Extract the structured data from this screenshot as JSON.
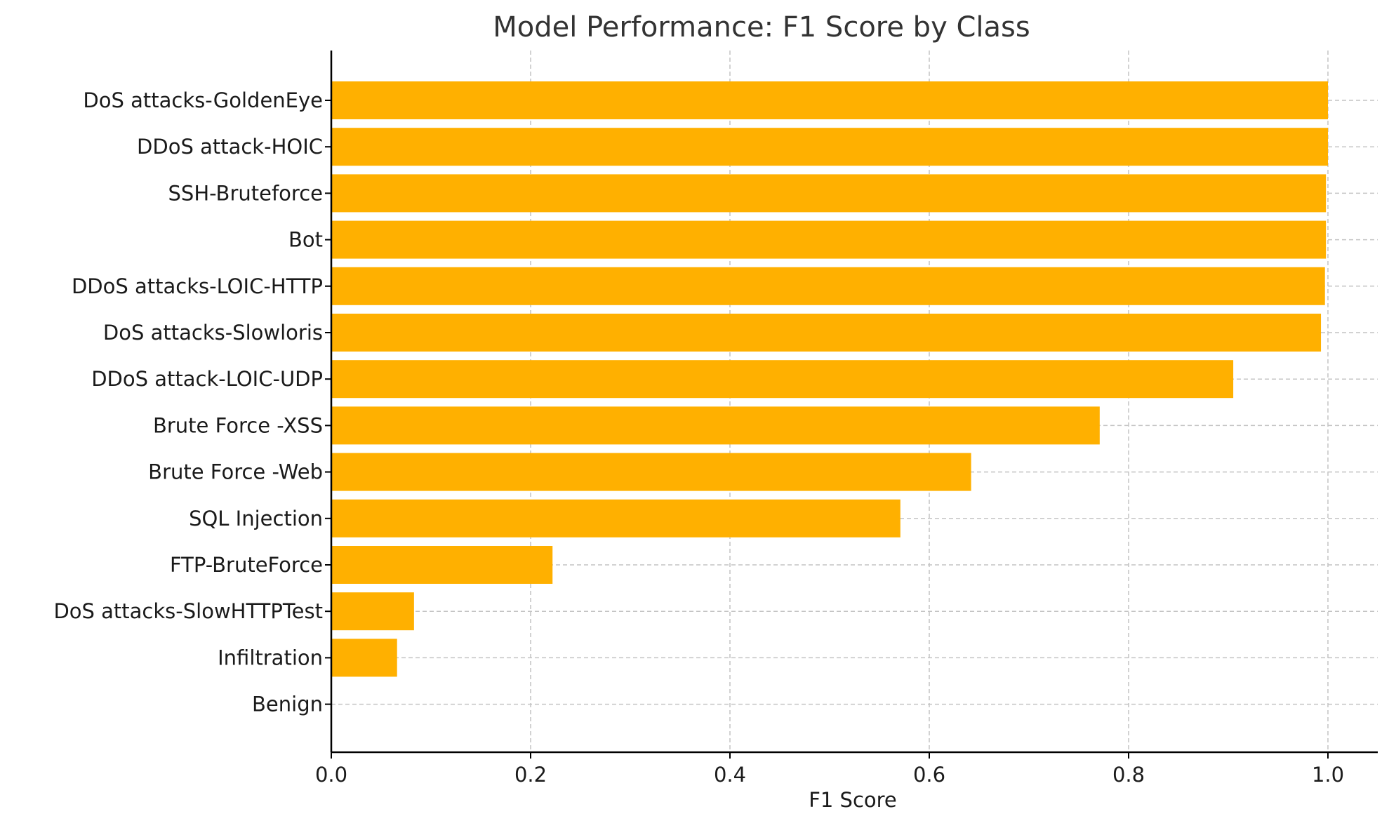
{
  "chart_data": {
    "type": "bar",
    "orientation": "horizontal",
    "title": "Model Performance: F1 Score by Class",
    "xlabel": "F1 Score",
    "ylabel": "",
    "xlim": [
      0,
      1.05
    ],
    "xticks": [
      "0.0",
      "0.2",
      "0.4",
      "0.6",
      "0.8",
      "1.0"
    ],
    "grid": true,
    "bar_color": "#FFB000",
    "categories": [
      "DoS attacks-GoldenEye",
      "DDoS attack-HOIC",
      "SSH-Bruteforce",
      "Bot",
      "DDoS attacks-LOIC-HTTP",
      "DoS attacks-Slowloris",
      "DDoS attack-LOIC-UDP",
      "Brute Force -XSS",
      "Brute Force -Web",
      "SQL Injection",
      "FTP-BruteForce",
      "DoS attacks-SlowHTTPTest",
      "Infiltration",
      "Benign"
    ],
    "values": [
      1.0,
      1.0,
      0.998,
      0.998,
      0.997,
      0.993,
      0.905,
      0.771,
      0.642,
      0.571,
      0.222,
      0.083,
      0.066,
      0.0
    ]
  }
}
